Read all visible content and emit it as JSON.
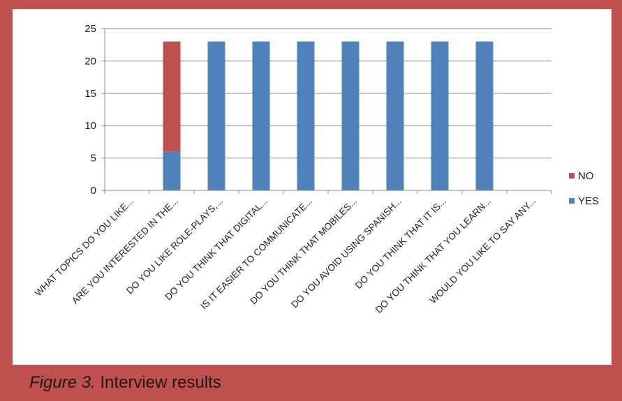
{
  "caption": {
    "figure_label": "Figure 3.",
    "text": "Interview results"
  },
  "chart_data": {
    "type": "bar",
    "stacked": true,
    "title": "",
    "xlabel": "",
    "ylabel": "",
    "ylim": [
      0,
      25
    ],
    "yticks": [
      0,
      5,
      10,
      15,
      20,
      25
    ],
    "grid": true,
    "legend_position": "right",
    "categories": [
      "WHAT TOPICS DO YOU LIKE...",
      "ARE YOU INTERESTED IN THE...",
      "DO YOU LIKE ROLE-PLAYS,...",
      "DO YOU THINK THAT DIGITAL...",
      "IS IT EASIER TO COMMUNICATE...",
      "DO YOU THINK THAT MOBILES...",
      "DO YOU AVOID USING SPANISH...",
      "DO YOU THINK THAT IT IS...",
      "DO YOU THINK THAT YOU LEARN...",
      "WOULD YOU LIKE TO SAY ANY..."
    ],
    "series": [
      {
        "name": "YES",
        "color": "#4f81bd",
        "values": [
          0,
          6,
          23,
          23,
          23,
          23,
          23,
          23,
          23,
          0
        ]
      },
      {
        "name": "NO",
        "color": "#c0504d",
        "values": [
          0,
          17,
          0,
          0,
          0,
          0,
          0,
          0,
          0,
          0
        ]
      }
    ],
    "legend_order": [
      "NO",
      "YES"
    ]
  }
}
